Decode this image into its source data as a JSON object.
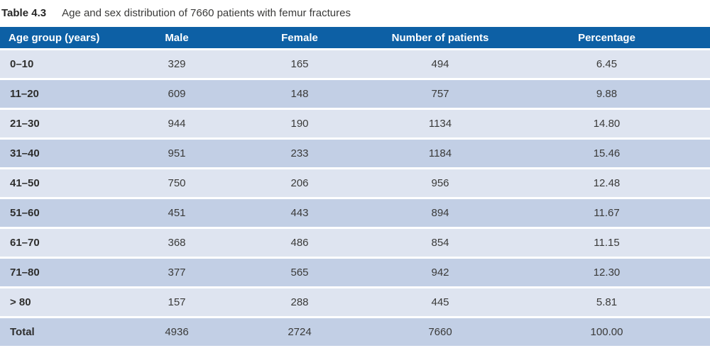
{
  "caption": {
    "label": "Table 4.3",
    "text": "Age and sex distribution of 7660 patients with femur fractures"
  },
  "table": {
    "columns": [
      {
        "key": "age",
        "label": "Age group (years)"
      },
      {
        "key": "male",
        "label": "Male"
      },
      {
        "key": "female",
        "label": "Female"
      },
      {
        "key": "patients",
        "label": "Number of patients"
      },
      {
        "key": "pct",
        "label": "Percentage"
      }
    ],
    "rows": [
      {
        "age": "0–10",
        "male": "329",
        "female": "165",
        "patients": "494",
        "pct": "6.45"
      },
      {
        "age": "11–20",
        "male": "609",
        "female": "148",
        "patients": "757",
        "pct": "9.88"
      },
      {
        "age": "21–30",
        "male": "944",
        "female": "190",
        "patients": "1134",
        "pct": "14.80"
      },
      {
        "age": "31–40",
        "male": "951",
        "female": "233",
        "patients": "1184",
        "pct": "15.46"
      },
      {
        "age": "41–50",
        "male": "750",
        "female": "206",
        "patients": "956",
        "pct": "12.48"
      },
      {
        "age": "51–60",
        "male": "451",
        "female": "443",
        "patients": "894",
        "pct": "11.67"
      },
      {
        "age": "61–70",
        "male": "368",
        "female": "486",
        "patients": "854",
        "pct": "11.15"
      },
      {
        "age": "71–80",
        "male": "377",
        "female": "565",
        "patients": "942",
        "pct": "12.30"
      },
      {
        "age": "> 80",
        "male": "157",
        "female": "288",
        "patients": "445",
        "pct": "5.81"
      },
      {
        "age": "Total",
        "male": "4936",
        "female": "2724",
        "patients": "7660",
        "pct": "100.00"
      }
    ]
  },
  "colors": {
    "header_bg": "#0d60a5",
    "row_light": "#dee4f0",
    "row_dark": "#c2cfe5",
    "body_text": "#3a3a39"
  }
}
